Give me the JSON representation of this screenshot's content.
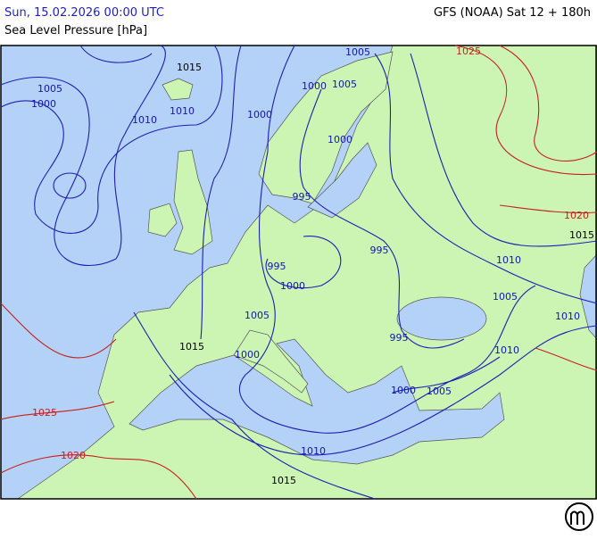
{
  "header": {
    "valid_time": "Sun, 15.02.2026 00:00 UTC",
    "parameter": "Sea Level Pressure [hPa]",
    "model_run": "GFS (NOAA) Sat 12 + 180h"
  },
  "map": {
    "isobar_labels": [
      "1005",
      "1000",
      "1015",
      "1010",
      "1010",
      "1000",
      "1005",
      "1000",
      "1005",
      "1000",
      "995",
      "995",
      "995",
      "1000",
      "1005",
      "1015",
      "1000",
      "995",
      "1010",
      "1005",
      "1010",
      "1010",
      "1000",
      "1005",
      "1010",
      "1015",
      "1025",
      "1020",
      "1015",
      "1025",
      "1020"
    ]
  }
}
